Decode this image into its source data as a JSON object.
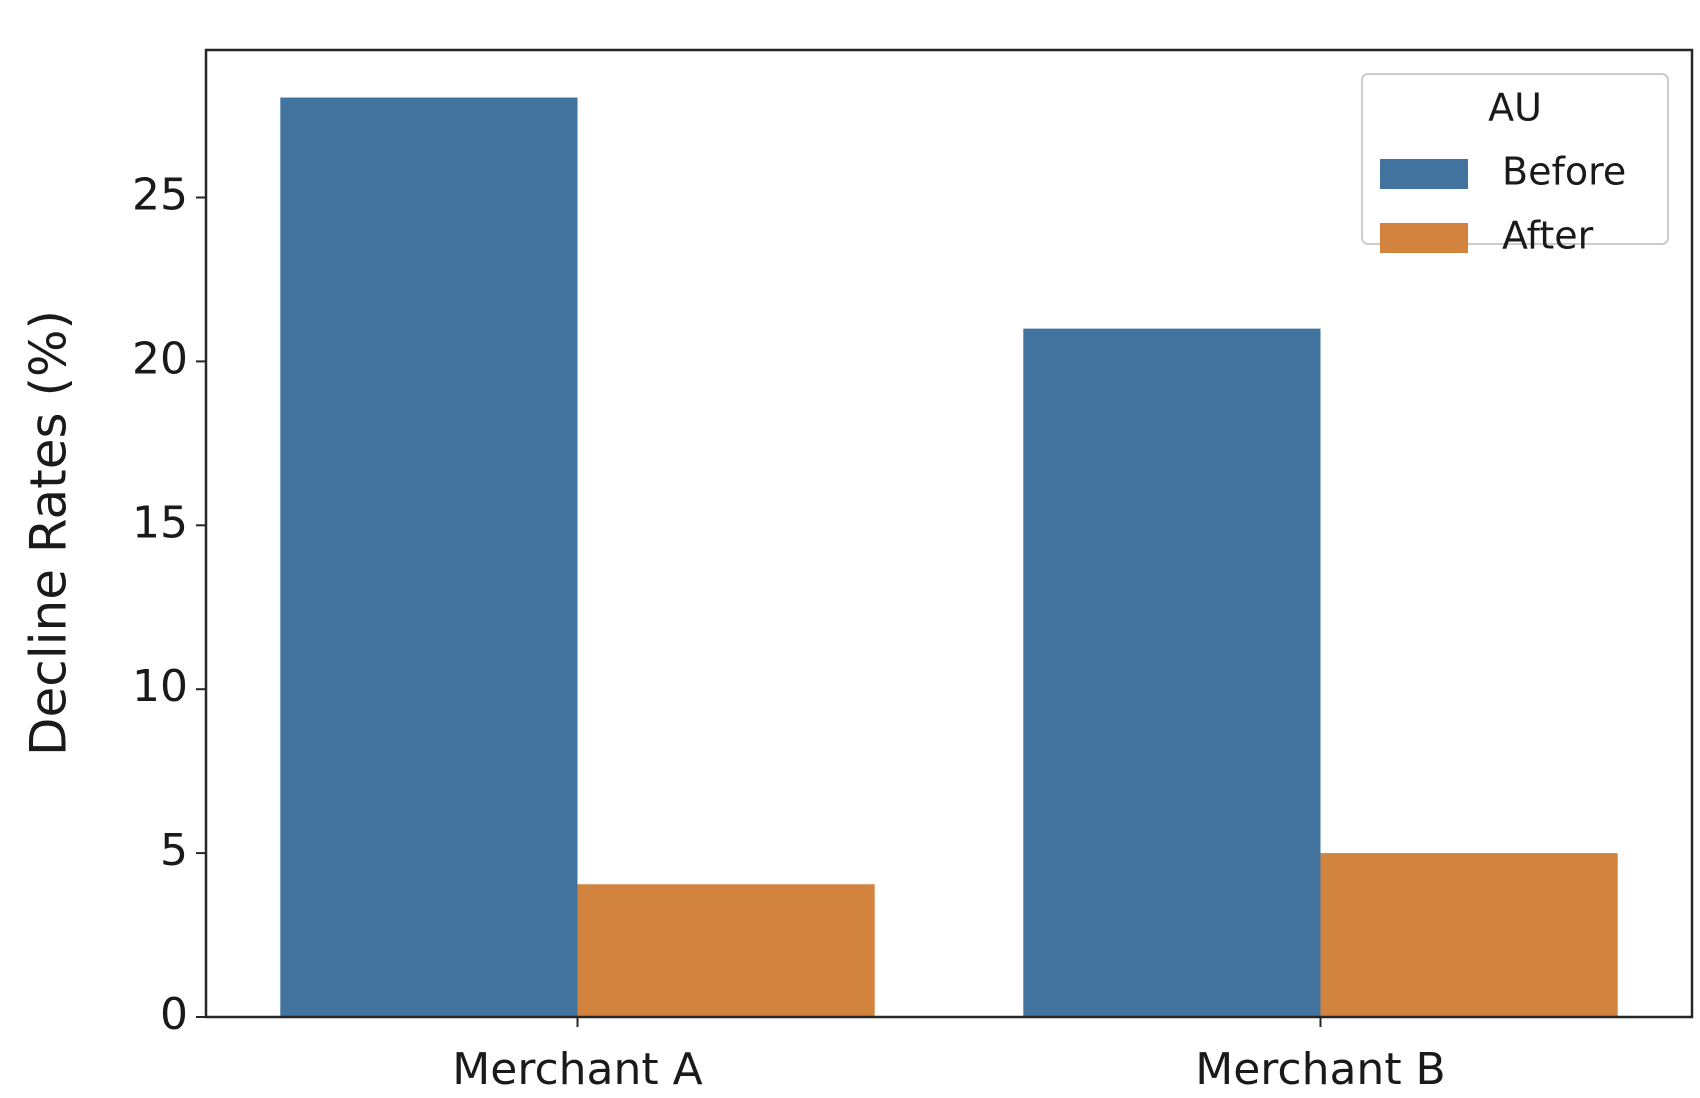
{
  "chart_data": {
    "type": "bar",
    "y_label": "Decline Rates (%)",
    "categories": [
      "Merchant A",
      "Merchant B"
    ],
    "series": [
      {
        "name": "Before",
        "color": "#4374a0",
        "values": [
          28.05,
          21.0
        ]
      },
      {
        "name": "After",
        "color": "#d2843f",
        "values": [
          4.05,
          5.0
        ]
      }
    ],
    "legend_title": "AU",
    "legend_position": "upper right",
    "ylim": [
      0,
      29.5
    ],
    "yticks": [
      0,
      5,
      10,
      15,
      20,
      25
    ],
    "grid": false
  }
}
